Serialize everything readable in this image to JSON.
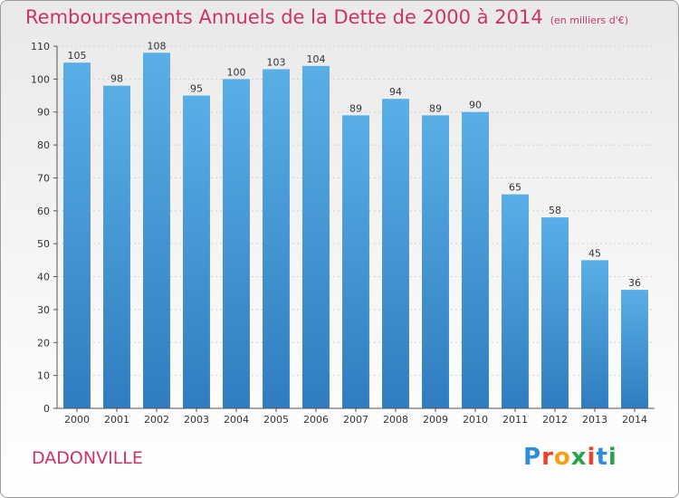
{
  "header": {
    "title": "Remboursements Annuels de la Dette de 2000 à 2014",
    "subtitle": "(en milliers d'€)"
  },
  "commune": "DADONVILLE",
  "brand": {
    "name": "Proxiti",
    "letters": [
      "P",
      "r",
      "o",
      "x",
      "i",
      "t",
      "i"
    ],
    "letter_colors": [
      "#2e8ed8",
      "#e8442a",
      "#f5a10f",
      "#2aa34a",
      "#e8442a",
      "#2e8ed8",
      "#2aa34a"
    ]
  },
  "colors": {
    "title": "#cc3366",
    "bar_top": "#5aaee6",
    "bar_bottom": "#2f7dbf",
    "grid": "#d0d0d0"
  },
  "chart_data": {
    "type": "bar",
    "title": "Remboursements Annuels de la Dette de 2000 à 2014",
    "subtitle": "(en milliers d'€)",
    "xlabel": "",
    "ylabel": "",
    "categories": [
      "2000",
      "2001",
      "2002",
      "2003",
      "2004",
      "2005",
      "2006",
      "2007",
      "2008",
      "2009",
      "2010",
      "2011",
      "2012",
      "2013",
      "2014"
    ],
    "values": [
      105,
      98,
      108,
      95,
      100,
      103,
      104,
      89,
      94,
      89,
      90,
      65,
      58,
      45,
      36
    ],
    "ylim": [
      0,
      110
    ],
    "yticks": [
      0,
      10,
      20,
      30,
      40,
      50,
      60,
      70,
      80,
      90,
      100,
      110
    ],
    "grid": true,
    "legend": "none"
  }
}
